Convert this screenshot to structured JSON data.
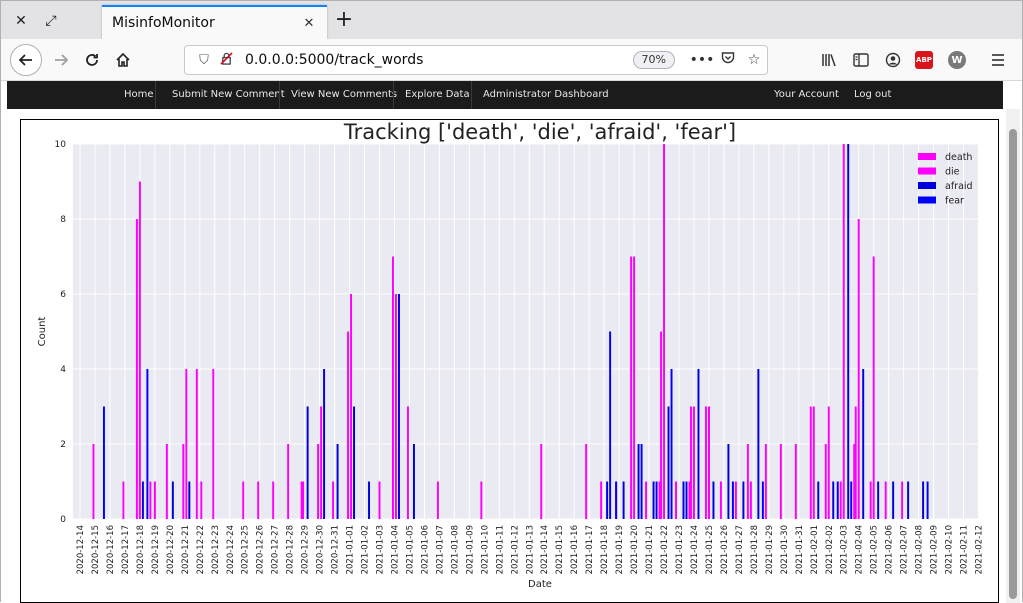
{
  "browser": {
    "tab_title": "MisinfoMonitor",
    "url": "0.0.0.0:5000/track_words",
    "zoom": "70%",
    "abp_label": "ABP",
    "w_label": "W"
  },
  "sitenav": {
    "items": [
      "Home",
      "Submit New Comment",
      "View New Comments",
      "Explore Data",
      "Administrator Dashboard"
    ],
    "right_items": [
      "Your Account",
      "Log out"
    ]
  },
  "colors": {
    "death": "#ff00ff",
    "die": "#ff00ff",
    "afraid": "#0000dd",
    "fear": "#0000ff",
    "plot_bg": "#eaeaf2",
    "grid": "#ffffff"
  },
  "chart_data": {
    "type": "bar",
    "title": "Tracking ['death', 'die', 'afraid', 'fear']",
    "xlabel": "Date",
    "ylabel": "Count",
    "ylim": [
      0,
      10
    ],
    "yticks": [
      0,
      2,
      4,
      6,
      8,
      10
    ],
    "grid": true,
    "legend_position": "top-right",
    "categories": [
      "2020-12-14",
      "2020-12-15",
      "2020-12-16",
      "2020-12-17",
      "2020-12-18",
      "2020-12-19",
      "2020-12-20",
      "2020-12-21",
      "2020-12-22",
      "2020-12-23",
      "2020-12-24",
      "2020-12-25",
      "2020-12-26",
      "2020-12-27",
      "2020-12-28",
      "2020-12-29",
      "2020-12-30",
      "2020-12-31",
      "2021-01-01",
      "2021-01-02",
      "2021-01-03",
      "2021-01-04",
      "2021-01-05",
      "2021-01-06",
      "2021-01-07",
      "2021-01-08",
      "2021-01-09",
      "2021-01-10",
      "2021-01-11",
      "2021-01-12",
      "2021-01-13",
      "2021-01-14",
      "2021-01-15",
      "2021-01-16",
      "2021-01-17",
      "2021-01-18",
      "2021-01-19",
      "2021-01-20",
      "2021-01-21",
      "2021-01-22",
      "2021-01-23",
      "2021-01-24",
      "2021-01-25",
      "2021-01-26",
      "2021-01-27",
      "2021-01-28",
      "2021-01-29",
      "2021-01-30",
      "2021-01-31",
      "2021-02-01",
      "2021-02-02",
      "2021-02-03",
      "2021-02-04",
      "2021-02-05",
      "2021-02-06",
      "2021-02-07",
      "2021-02-08",
      "2021-02-09",
      "2021-02-10",
      "2021-02-11",
      "2021-02-12"
    ],
    "bar_width_days": 0.13,
    "series": [
      {
        "name": "death",
        "color": "#ff00ff",
        "offset": -0.1,
        "points": [
          [
            1.0,
            2
          ],
          [
            3.0,
            1
          ],
          [
            3.9,
            8
          ],
          [
            4.8,
            1
          ],
          [
            5.9,
            2
          ],
          [
            7.0,
            2
          ],
          [
            7.9,
            4
          ],
          [
            9.0,
            4
          ],
          [
            11.0,
            1
          ],
          [
            12.0,
            1
          ],
          [
            13.0,
            1
          ],
          [
            14.0,
            2
          ],
          [
            14.9,
            1
          ],
          [
            16.0,
            2
          ],
          [
            17.0,
            1
          ],
          [
            18.0,
            5
          ],
          [
            20.1,
            1
          ],
          [
            21.0,
            7
          ],
          [
            22.0,
            3
          ],
          [
            24.0,
            1
          ],
          [
            26.9,
            1
          ],
          [
            30.9,
            2
          ],
          [
            33.9,
            2
          ],
          [
            34.9,
            1
          ],
          [
            35.9,
            1
          ],
          [
            36.9,
            7
          ],
          [
            37.9,
            1
          ],
          [
            38.8,
            1
          ],
          [
            38.9,
            5
          ],
          [
            39.9,
            1
          ],
          [
            40.8,
            1
          ],
          [
            40.9,
            3
          ],
          [
            41.9,
            3
          ],
          [
            42.1,
            3
          ],
          [
            42.9,
            1
          ],
          [
            43.9,
            1
          ],
          [
            44.7,
            2
          ],
          [
            44.9,
            1
          ],
          [
            45.9,
            2
          ],
          [
            46.9,
            2
          ],
          [
            47.9,
            2
          ],
          [
            48.9,
            3
          ],
          [
            49.9,
            2
          ],
          [
            50.9,
            1
          ],
          [
            51.8,
            2
          ],
          [
            51.9,
            3
          ],
          [
            52.9,
            1
          ],
          [
            53.9,
            1
          ]
        ]
      },
      {
        "name": "die",
        "color": "#ff00ff",
        "offset": 0.0,
        "points": [
          [
            4.0,
            9
          ],
          [
            5.0,
            1
          ],
          [
            7.1,
            4
          ],
          [
            8.1,
            1
          ],
          [
            14.9,
            1
          ],
          [
            16.1,
            3
          ],
          [
            18.1,
            6
          ],
          [
            21.1,
            6
          ],
          [
            37.0,
            7
          ],
          [
            39.0,
            10
          ],
          [
            41.0,
            3
          ],
          [
            42.0,
            3
          ],
          [
            49.0,
            3
          ],
          [
            50.0,
            3
          ],
          [
            51.0,
            10
          ],
          [
            52.0,
            8
          ],
          [
            53.0,
            7
          ],
          [
            54.9,
            1
          ]
        ]
      },
      {
        "name": "afraid",
        "color": "#0000dd",
        "offset": 0.1,
        "points": [
          [
            4.1,
            1
          ],
          [
            6.1,
            1
          ],
          [
            7.2,
            1
          ],
          [
            15.1,
            3
          ],
          [
            16.2,
            4
          ],
          [
            17.1,
            2
          ],
          [
            18.2,
            3
          ],
          [
            19.2,
            1
          ],
          [
            21.2,
            6
          ],
          [
            22.2,
            2
          ],
          [
            35.1,
            1
          ],
          [
            36.2,
            1
          ],
          [
            37.2,
            2
          ],
          [
            38.2,
            1
          ],
          [
            39.2,
            3
          ],
          [
            40.2,
            1
          ],
          [
            41.2,
            4
          ],
          [
            42.2,
            1
          ],
          [
            43.2,
            2
          ],
          [
            44.2,
            1
          ],
          [
            45.2,
            4
          ],
          [
            49.2,
            1
          ],
          [
            50.2,
            1
          ],
          [
            51.2,
            10
          ],
          [
            52.2,
            4
          ],
          [
            53.2,
            1
          ],
          [
            54.2,
            1
          ],
          [
            55.2,
            1
          ],
          [
            56.2,
            1
          ]
        ]
      },
      {
        "name": "fear",
        "color": "#0000ff",
        "offset": 0.2,
        "points": [
          [
            1.4,
            3
          ],
          [
            4.3,
            4
          ],
          [
            35.2,
            5
          ],
          [
            35.6,
            1
          ],
          [
            37.3,
            2
          ],
          [
            38.3,
            1
          ],
          [
            39.3,
            4
          ],
          [
            40.3,
            1
          ],
          [
            43.4,
            1
          ],
          [
            45.4,
            1
          ],
          [
            50.4,
            1
          ],
          [
            51.3,
            1
          ],
          [
            56.4,
            1
          ]
        ]
      }
    ]
  }
}
